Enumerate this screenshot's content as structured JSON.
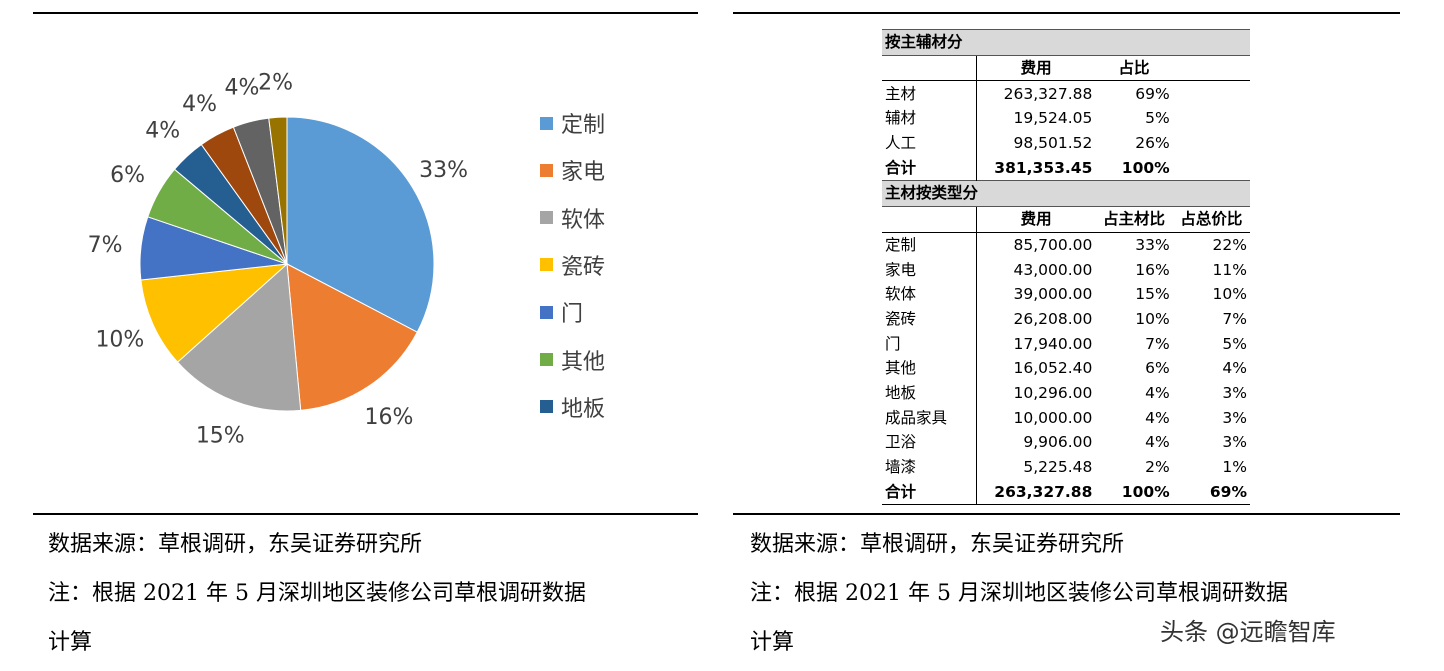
{
  "chart_data": {
    "type": "pie",
    "slices": [
      {
        "label": "定制",
        "value": 33,
        "color": "#5b9bd5"
      },
      {
        "label": "家电",
        "value": 16,
        "color": "#ed7d31"
      },
      {
        "label": "软体",
        "value": 15,
        "color": "#a5a5a5"
      },
      {
        "label": "瓷砖",
        "value": 10,
        "color": "#ffc000"
      },
      {
        "label": "门",
        "value": 7,
        "color": "#4472c4"
      },
      {
        "label": "其他",
        "value": 6,
        "color": "#70ad47"
      },
      {
        "label": "地板",
        "value": 4,
        "color": "#255e91"
      },
      {
        "label": "成品家具",
        "value": 4,
        "color": "#9e480e"
      },
      {
        "label": "卫浴",
        "value": 4,
        "color": "#636363"
      },
      {
        "label": "墙漆",
        "value": 2,
        "color": "#997300"
      }
    ],
    "data_labels": [
      "33%",
      "16%",
      "15%",
      "10%",
      "7%",
      "6%",
      "4%",
      "4%",
      "4%",
      "2%"
    ],
    "legend": [
      "定制",
      "家电",
      "软体",
      "瓷砖",
      "门",
      "其他",
      "地板"
    ],
    "legend_position": "right"
  },
  "table": {
    "section1_title": "按主辅材分",
    "section1_headers": [
      "",
      "费用",
      "占比",
      ""
    ],
    "section1_rows": [
      [
        "主材",
        "263,327.88",
        "69%"
      ],
      [
        "辅材",
        "19,524.05",
        "5%"
      ],
      [
        "人工",
        "98,501.52",
        "26%"
      ]
    ],
    "section1_total": [
      "合计",
      "381,353.45",
      "100%"
    ],
    "section2_title": "主材按类型分",
    "section2_headers": [
      "",
      "费用",
      "占主材比",
      "占总价比"
    ],
    "section2_rows": [
      [
        "定制",
        "85,700.00",
        "33%",
        "22%"
      ],
      [
        "家电",
        "43,000.00",
        "16%",
        "11%"
      ],
      [
        "软体",
        "39,000.00",
        "15%",
        "10%"
      ],
      [
        "瓷砖",
        "26,208.00",
        "10%",
        "7%"
      ],
      [
        "门",
        "17,940.00",
        "7%",
        "5%"
      ],
      [
        "其他",
        "16,052.40",
        "6%",
        "4%"
      ],
      [
        "地板",
        "10,296.00",
        "4%",
        "3%"
      ],
      [
        "成品家具",
        "10,000.00",
        "4%",
        "3%"
      ],
      [
        "卫浴",
        "9,906.00",
        "4%",
        "3%"
      ],
      [
        "墙漆",
        "5,225.48",
        "2%",
        "1%"
      ]
    ],
    "section2_total": [
      "合计",
      "263,327.88",
      "100%",
      "69%"
    ]
  },
  "notes": {
    "source": "数据来源：草根调研，东吴证券研究所",
    "note_line1": "注：根据 2021 年 5 月深圳地区装修公司草根调研数据",
    "note_line2": "计算"
  },
  "watermark": "头条 @远瞻智库"
}
